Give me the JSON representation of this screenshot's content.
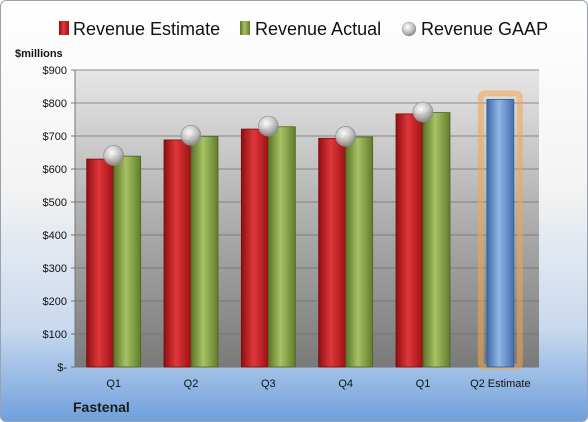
{
  "company": "Fastenal",
  "chart_data": {
    "type": "bar",
    "ylabel": "$millions",
    "ylim": [
      0,
      900
    ],
    "yticks": [
      "$-",
      "$100",
      "$200",
      "$300",
      "$400",
      "$500",
      "$600",
      "$700",
      "$800",
      "$900"
    ],
    "categories": [
      "Q1",
      "Q2",
      "Q3",
      "Q4",
      "Q1",
      "Q2 Estimate"
    ],
    "legend_position": "top",
    "grid": true,
    "series": [
      {
        "name": "Revenue Estimate",
        "kind": "bar",
        "color": "#c0171d",
        "values": [
          630,
          688,
          721,
          693,
          767,
          null
        ]
      },
      {
        "name": "Revenue Actual",
        "kind": "bar",
        "color": "#7f9b3c",
        "values": [
          639,
          699,
          728,
          697,
          771,
          null
        ]
      },
      {
        "name": "Revenue GAAP",
        "kind": "marker",
        "color": "#b9b9b9",
        "values": [
          641,
          702,
          730,
          699,
          773,
          null
        ]
      },
      {
        "name": "Q2 Estimate",
        "kind": "bar",
        "color": "#4f81bd",
        "highlight": "#f4a64a",
        "values": [
          null,
          null,
          null,
          null,
          null,
          811
        ]
      }
    ]
  }
}
